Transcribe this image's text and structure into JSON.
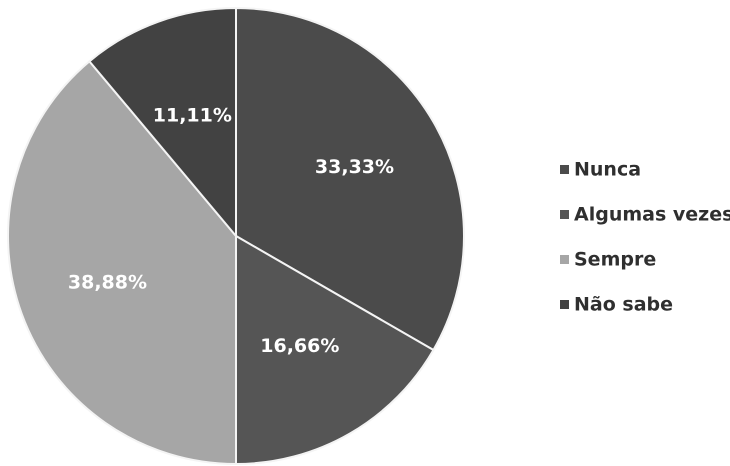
{
  "chart_data": {
    "type": "pie",
    "categories": [
      "Nunca",
      "Algumas vezes",
      "Sempre",
      "Não sabe"
    ],
    "values": [
      33.33,
      16.66,
      38.88,
      11.11
    ],
    "data_labels": [
      "33,33%",
      "16,66%",
      "38,88%",
      "11,11%"
    ],
    "colors": [
      "#4b4b4b",
      "#555555",
      "#a6a6a6",
      "#424242"
    ],
    "legend_position": "right",
    "title": "",
    "start_angle_deg": 0,
    "direction": "clockwise"
  }
}
